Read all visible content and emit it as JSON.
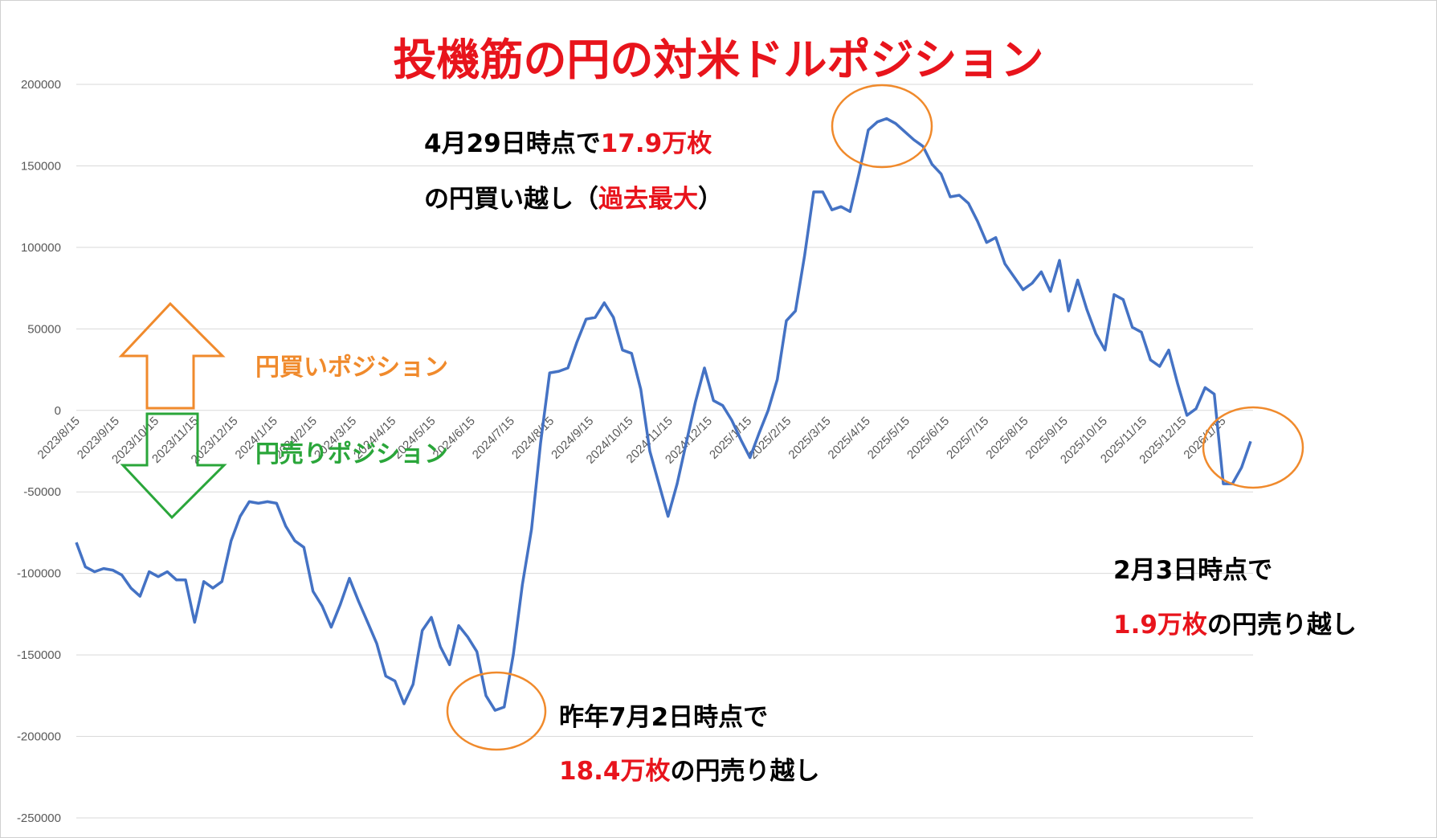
{
  "chart_data": {
    "type": "line",
    "title": "投機筋の円の対米ドルポジション",
    "xlabel": "",
    "ylabel": "",
    "ylim": [
      -250000,
      200000
    ],
    "yticks": [
      200000,
      150000,
      100000,
      50000,
      0,
      -50000,
      -100000,
      -150000,
      -200000,
      -250000
    ],
    "xtick_labels": [
      "2023/8/15",
      "2023/9/15",
      "2023/10/15",
      "2023/11/15",
      "2023/12/15",
      "2024/1/15",
      "2024/2/15",
      "2024/3/15",
      "2024/4/15",
      "2024/5/15",
      "2024/6/15",
      "2024/7/15",
      "2024/8/15",
      "2024/9/15",
      "2024/10/15",
      "2024/11/15",
      "2024/12/15",
      "2025/1/15",
      "2025/2/15",
      "2025/3/15",
      "2025/4/15",
      "2025/5/15",
      "2025/6/15",
      "2025/7/15",
      "2025/8/15",
      "2025/9/15",
      "2025/10/15",
      "2025/11/15",
      "2025/12/15",
      "2026/1/15"
    ],
    "grid": "horizontal",
    "color": "#4472c4",
    "series": [
      {
        "name": "",
        "values": [
          -81000,
          -96000,
          -99000,
          -97000,
          -98000,
          -101000,
          -109000,
          -114000,
          -99000,
          -102000,
          -99000,
          -104000,
          -104000,
          -130000,
          -105000,
          -109000,
          -105000,
          -80000,
          -65000,
          -56000,
          -57000,
          -56000,
          -57000,
          -71000,
          -80000,
          -84000,
          -111000,
          -120000,
          -133000,
          -119000,
          -103000,
          -117000,
          -130000,
          -143000,
          -163000,
          -166000,
          -180000,
          -168000,
          -135000,
          -127000,
          -145000,
          -156000,
          -132000,
          -139000,
          -148000,
          -175000,
          -184000,
          -182000,
          -150000,
          -107000,
          -73000,
          -20000,
          23000,
          24000,
          26000,
          42000,
          56000,
          57000,
          66000,
          57000,
          37000,
          35000,
          13000,
          -25000,
          -45000,
          -65000,
          -45000,
          -20000,
          5000,
          26000,
          6000,
          3000,
          -6000,
          -18000,
          -29000,
          -14000,
          0,
          19000,
          55000,
          61000,
          95000,
          134000,
          134000,
          123000,
          125000,
          122000,
          146000,
          172000,
          177000,
          179000,
          176000,
          171000,
          166000,
          162000,
          151000,
          145000,
          131000,
          132000,
          127000,
          116000,
          103000,
          106000,
          90000,
          82000,
          74000,
          78000,
          85000,
          73000,
          92000,
          61000,
          80000,
          62000,
          47000,
          37000,
          71000,
          68000,
          51000,
          48000,
          31000,
          27000,
          37000,
          16000,
          -3000,
          1000,
          14000,
          10000,
          -45000,
          -45000,
          -35000,
          -19000
        ]
      }
    ],
    "annotations": {
      "peak_line1_a": "4月29日時点で",
      "peak_line1_b": "17.9万枚",
      "peak_line2_a": "の円買い越し（",
      "peak_line2_b": "過去最大",
      "peak_line2_c": "）",
      "trough_line1": "昨年7月2日時点で",
      "trough_line2_a": "18.4万枚",
      "trough_line2_b": "の円売り越し",
      "latest_line1": "2月3日時点で",
      "latest_line2_a": "1.9万枚",
      "latest_line2_b": "の円売り越し",
      "buy_label": "円買いポジション",
      "sell_label": "円売りポジション"
    },
    "colors": {
      "line": "#4472c4",
      "title": "#e8141c",
      "highlight": "#e8141c",
      "circle": "#f08a2c",
      "buy_arrow": "#f08a2c",
      "sell_arrow": "#2aa63a",
      "grid": "#d9d9d9",
      "tick_text": "#595959"
    }
  }
}
